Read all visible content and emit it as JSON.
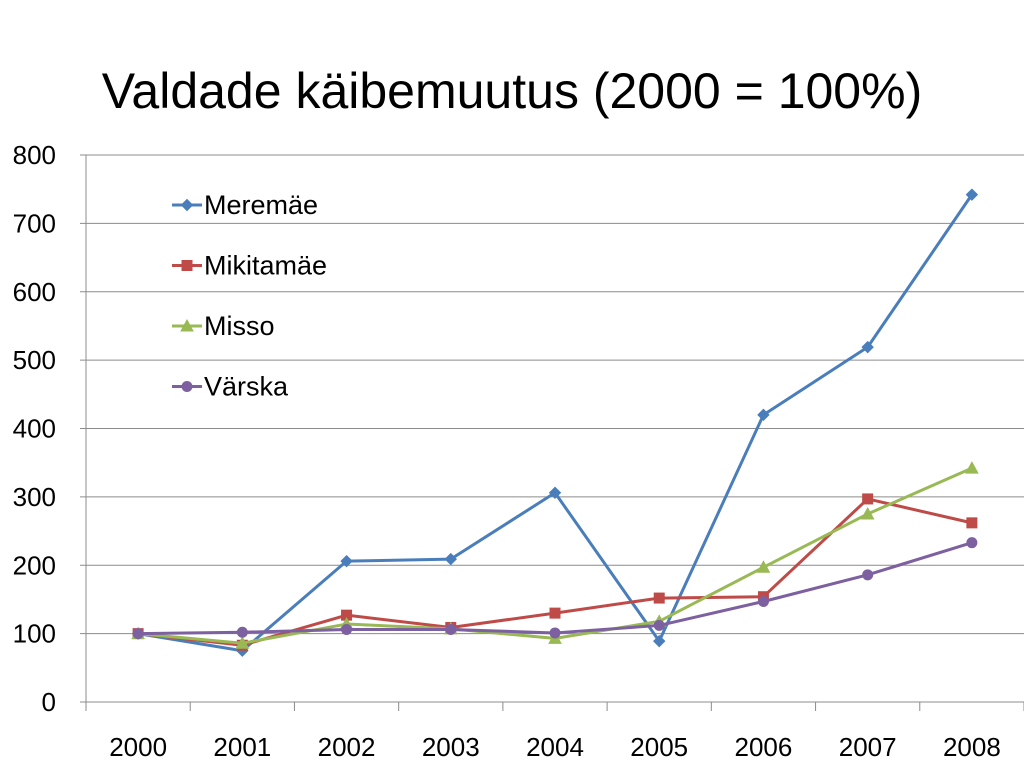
{
  "chart_data": {
    "type": "line",
    "title": "Valdade käibemuutus (2000 = 100%)",
    "xlabel": "",
    "ylabel": "",
    "categories": [
      "2000",
      "2001",
      "2002",
      "2003",
      "2004",
      "2005",
      "2006",
      "2007",
      "2008"
    ],
    "ylim": [
      0,
      800
    ],
    "yticks": [
      0,
      100,
      200,
      300,
      400,
      500,
      600,
      700,
      800
    ],
    "grid": true,
    "legend_position": "top-left",
    "series": [
      {
        "name": "Meremäe",
        "color": "#4A7EBB",
        "marker": "diamond",
        "values": [
          100,
          75,
          206,
          209,
          306,
          89,
          420,
          519,
          742
        ]
      },
      {
        "name": "Mikitamäe",
        "color": "#BE4B48",
        "marker": "square",
        "values": [
          100,
          83,
          127,
          109,
          130,
          152,
          154,
          297,
          262
        ]
      },
      {
        "name": "Misso",
        "color": "#98B954",
        "marker": "triangle",
        "values": [
          100,
          86,
          114,
          107,
          93,
          118,
          197,
          275,
          342
        ]
      },
      {
        "name": "Värska",
        "color": "#7D60A0",
        "marker": "circle",
        "values": [
          100,
          102,
          106,
          106,
          101,
          112,
          147,
          186,
          233
        ]
      }
    ]
  }
}
